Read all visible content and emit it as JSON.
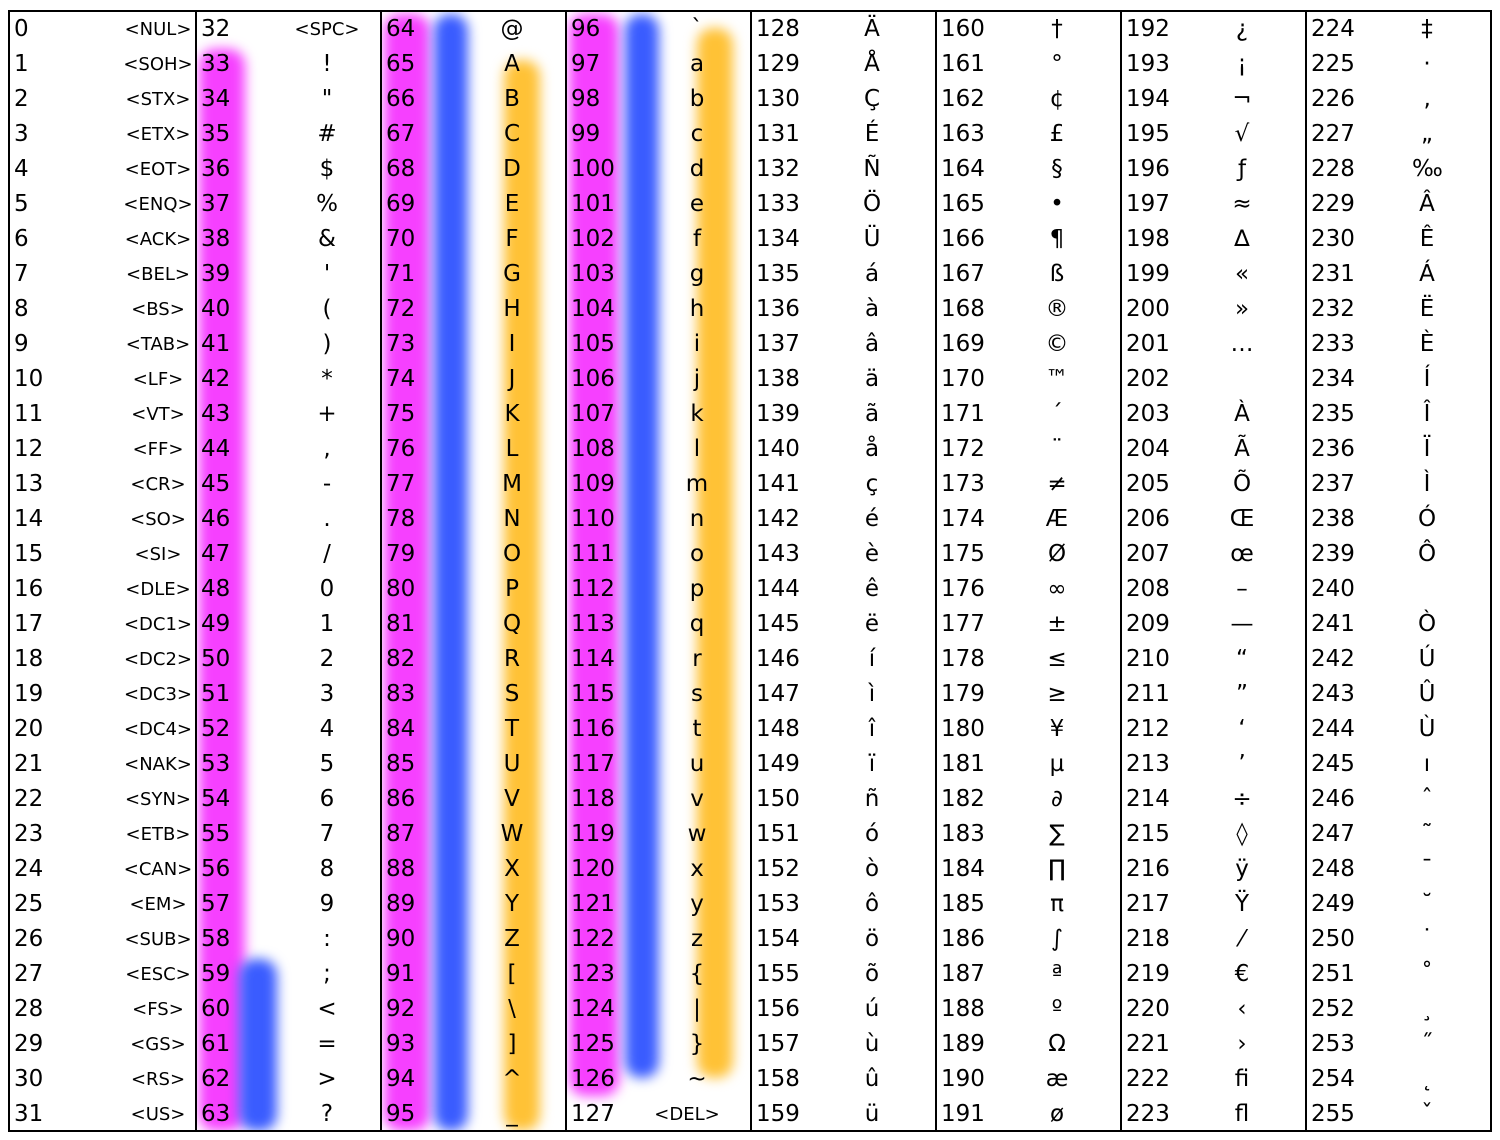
{
  "title": "",
  "colors": {
    "magenta": "#f640ff",
    "blue": "#3a5cff",
    "orange": "#ffc236"
  },
  "columns": [
    {
      "rows": [
        [
          "0",
          "<NUL>"
        ],
        [
          "1",
          "<SOH>"
        ],
        [
          "2",
          "<STX>"
        ],
        [
          "3",
          "<ETX>"
        ],
        [
          "4",
          "<EOT>"
        ],
        [
          "5",
          "<ENQ>"
        ],
        [
          "6",
          "<ACK>"
        ],
        [
          "7",
          "<BEL>"
        ],
        [
          "8",
          "<BS>"
        ],
        [
          "9",
          "<TAB>"
        ],
        [
          "10",
          "<LF>"
        ],
        [
          "11",
          "<VT>"
        ],
        [
          "12",
          "<FF>"
        ],
        [
          "13",
          "<CR>"
        ],
        [
          "14",
          "<SO>"
        ],
        [
          "15",
          "<SI>"
        ],
        [
          "16",
          "<DLE>"
        ],
        [
          "17",
          "<DC1>"
        ],
        [
          "18",
          "<DC2>"
        ],
        [
          "19",
          "<DC3>"
        ],
        [
          "20",
          "<DC4>"
        ],
        [
          "21",
          "<NAK>"
        ],
        [
          "22",
          "<SYN>"
        ],
        [
          "23",
          "<ETB>"
        ],
        [
          "24",
          "<CAN>"
        ],
        [
          "25",
          "<EM>"
        ],
        [
          "26",
          "<SUB>"
        ],
        [
          "27",
          "<ESC>"
        ],
        [
          "28",
          "<FS>"
        ],
        [
          "29",
          "<GS>"
        ],
        [
          "30",
          "<RS>"
        ],
        [
          "31",
          "<US>"
        ]
      ]
    },
    {
      "rows": [
        [
          "32",
          "<SPC>"
        ],
        [
          "33",
          "!"
        ],
        [
          "34",
          "\""
        ],
        [
          "35",
          "#"
        ],
        [
          "36",
          "$"
        ],
        [
          "37",
          "%"
        ],
        [
          "38",
          "&"
        ],
        [
          "39",
          "'"
        ],
        [
          "40",
          "("
        ],
        [
          "41",
          ")"
        ],
        [
          "42",
          "*"
        ],
        [
          "43",
          "+"
        ],
        [
          "44",
          ","
        ],
        [
          "45",
          "-"
        ],
        [
          "46",
          "."
        ],
        [
          "47",
          "/"
        ],
        [
          "48",
          "0"
        ],
        [
          "49",
          "1"
        ],
        [
          "50",
          "2"
        ],
        [
          "51",
          "3"
        ],
        [
          "52",
          "4"
        ],
        [
          "53",
          "5"
        ],
        [
          "54",
          "6"
        ],
        [
          "55",
          "7"
        ],
        [
          "56",
          "8"
        ],
        [
          "57",
          "9"
        ],
        [
          "58",
          ":"
        ],
        [
          "59",
          ";"
        ],
        [
          "60",
          "<"
        ],
        [
          "61",
          "="
        ],
        [
          "62",
          ">"
        ],
        [
          "63",
          "?"
        ]
      ]
    },
    {
      "rows": [
        [
          "64",
          "@"
        ],
        [
          "65",
          "A"
        ],
        [
          "66",
          "B"
        ],
        [
          "67",
          "C"
        ],
        [
          "68",
          "D"
        ],
        [
          "69",
          "E"
        ],
        [
          "70",
          "F"
        ],
        [
          "71",
          "G"
        ],
        [
          "72",
          "H"
        ],
        [
          "73",
          "I"
        ],
        [
          "74",
          "J"
        ],
        [
          "75",
          "K"
        ],
        [
          "76",
          "L"
        ],
        [
          "77",
          "M"
        ],
        [
          "78",
          "N"
        ],
        [
          "79",
          "O"
        ],
        [
          "80",
          "P"
        ],
        [
          "81",
          "Q"
        ],
        [
          "82",
          "R"
        ],
        [
          "83",
          "S"
        ],
        [
          "84",
          "T"
        ],
        [
          "85",
          "U"
        ],
        [
          "86",
          "V"
        ],
        [
          "87",
          "W"
        ],
        [
          "88",
          "X"
        ],
        [
          "89",
          "Y"
        ],
        [
          "90",
          "Z"
        ],
        [
          "91",
          "["
        ],
        [
          "92",
          "\\"
        ],
        [
          "93",
          "]"
        ],
        [
          "94",
          "^"
        ],
        [
          "95",
          "_"
        ]
      ]
    },
    {
      "rows": [
        [
          "96",
          "`"
        ],
        [
          "97",
          "a"
        ],
        [
          "98",
          "b"
        ],
        [
          "99",
          "c"
        ],
        [
          "100",
          "d"
        ],
        [
          "101",
          "e"
        ],
        [
          "102",
          "f"
        ],
        [
          "103",
          "g"
        ],
        [
          "104",
          "h"
        ],
        [
          "105",
          "i"
        ],
        [
          "106",
          "j"
        ],
        [
          "107",
          "k"
        ],
        [
          "108",
          "l"
        ],
        [
          "109",
          "m"
        ],
        [
          "110",
          "n"
        ],
        [
          "111",
          "o"
        ],
        [
          "112",
          "p"
        ],
        [
          "113",
          "q"
        ],
        [
          "114",
          "r"
        ],
        [
          "115",
          "s"
        ],
        [
          "116",
          "t"
        ],
        [
          "117",
          "u"
        ],
        [
          "118",
          "v"
        ],
        [
          "119",
          "w"
        ],
        [
          "120",
          "x"
        ],
        [
          "121",
          "y"
        ],
        [
          "122",
          "z"
        ],
        [
          "123",
          "{"
        ],
        [
          "124",
          "|"
        ],
        [
          "125",
          "}"
        ],
        [
          "126",
          "~"
        ],
        [
          "127",
          "<DEL>"
        ]
      ]
    },
    {
      "rows": [
        [
          "128",
          "Ä"
        ],
        [
          "129",
          "Å"
        ],
        [
          "130",
          "Ç"
        ],
        [
          "131",
          "É"
        ],
        [
          "132",
          "Ñ"
        ],
        [
          "133",
          "Ö"
        ],
        [
          "134",
          "Ü"
        ],
        [
          "135",
          "á"
        ],
        [
          "136",
          "à"
        ],
        [
          "137",
          "â"
        ],
        [
          "138",
          "ä"
        ],
        [
          "139",
          "ã"
        ],
        [
          "140",
          "å"
        ],
        [
          "141",
          "ç"
        ],
        [
          "142",
          "é"
        ],
        [
          "143",
          "è"
        ],
        [
          "144",
          "ê"
        ],
        [
          "145",
          "ë"
        ],
        [
          "146",
          "í"
        ],
        [
          "147",
          "ì"
        ],
        [
          "148",
          "î"
        ],
        [
          "149",
          "ï"
        ],
        [
          "150",
          "ñ"
        ],
        [
          "151",
          "ó"
        ],
        [
          "152",
          "ò"
        ],
        [
          "153",
          "ô"
        ],
        [
          "154",
          "ö"
        ],
        [
          "155",
          "õ"
        ],
        [
          "156",
          "ú"
        ],
        [
          "157",
          "ù"
        ],
        [
          "158",
          "û"
        ],
        [
          "159",
          "ü"
        ]
      ]
    },
    {
      "rows": [
        [
          "160",
          "†"
        ],
        [
          "161",
          "°"
        ],
        [
          "162",
          "¢"
        ],
        [
          "163",
          "£"
        ],
        [
          "164",
          "§"
        ],
        [
          "165",
          "•"
        ],
        [
          "166",
          "¶"
        ],
        [
          "167",
          "ß"
        ],
        [
          "168",
          "®"
        ],
        [
          "169",
          "©"
        ],
        [
          "170",
          "™"
        ],
        [
          "171",
          "´"
        ],
        [
          "172",
          "¨"
        ],
        [
          "173",
          "≠"
        ],
        [
          "174",
          "Æ"
        ],
        [
          "175",
          "Ø"
        ],
        [
          "176",
          "∞"
        ],
        [
          "177",
          "±"
        ],
        [
          "178",
          "≤"
        ],
        [
          "179",
          "≥"
        ],
        [
          "180",
          "¥"
        ],
        [
          "181",
          "µ"
        ],
        [
          "182",
          "∂"
        ],
        [
          "183",
          "∑"
        ],
        [
          "184",
          "∏"
        ],
        [
          "185",
          "π"
        ],
        [
          "186",
          "∫"
        ],
        [
          "187",
          "ª"
        ],
        [
          "188",
          "º"
        ],
        [
          "189",
          "Ω"
        ],
        [
          "190",
          "æ"
        ],
        [
          "191",
          "ø"
        ]
      ]
    },
    {
      "rows": [
        [
          "192",
          "¿"
        ],
        [
          "193",
          "¡"
        ],
        [
          "194",
          "¬"
        ],
        [
          "195",
          "√"
        ],
        [
          "196",
          "ƒ"
        ],
        [
          "197",
          "≈"
        ],
        [
          "198",
          "∆"
        ],
        [
          "199",
          "«"
        ],
        [
          "200",
          "»"
        ],
        [
          "201",
          "…"
        ],
        [
          "202",
          ""
        ],
        [
          "203",
          "À"
        ],
        [
          "204",
          "Ã"
        ],
        [
          "205",
          "Õ"
        ],
        [
          "206",
          "Œ"
        ],
        [
          "207",
          "œ"
        ],
        [
          "208",
          "–"
        ],
        [
          "209",
          "—"
        ],
        [
          "210",
          "“"
        ],
        [
          "211",
          "”"
        ],
        [
          "212",
          "‘"
        ],
        [
          "213",
          "’"
        ],
        [
          "214",
          "÷"
        ],
        [
          "215",
          "◊"
        ],
        [
          "216",
          "ÿ"
        ],
        [
          "217",
          "Ÿ"
        ],
        [
          "218",
          "⁄"
        ],
        [
          "219",
          "€"
        ],
        [
          "220",
          "‹"
        ],
        [
          "221",
          "›"
        ],
        [
          "222",
          "ﬁ"
        ],
        [
          "223",
          "ﬂ"
        ]
      ]
    },
    {
      "rows": [
        [
          "224",
          "‡"
        ],
        [
          "225",
          "·"
        ],
        [
          "226",
          "‚"
        ],
        [
          "227",
          "„"
        ],
        [
          "228",
          "‰"
        ],
        [
          "229",
          "Â"
        ],
        [
          "230",
          "Ê"
        ],
        [
          "231",
          "Á"
        ],
        [
          "232",
          "Ë"
        ],
        [
          "233",
          "È"
        ],
        [
          "234",
          "Í"
        ],
        [
          "235",
          "Î"
        ],
        [
          "236",
          "Ï"
        ],
        [
          "237",
          "Ì"
        ],
        [
          "238",
          "Ó"
        ],
        [
          "239",
          "Ô"
        ],
        [
          "240",
          ""
        ],
        [
          "241",
          "Ò"
        ],
        [
          "242",
          "Ú"
        ],
        [
          "243",
          "Û"
        ],
        [
          "244",
          "Ù"
        ],
        [
          "245",
          "ı"
        ],
        [
          "246",
          "ˆ"
        ],
        [
          "247",
          "˜"
        ],
        [
          "248",
          "¯"
        ],
        [
          "249",
          "˘"
        ],
        [
          "250",
          "˙"
        ],
        [
          "251",
          "˚"
        ],
        [
          "252",
          "¸"
        ],
        [
          "253",
          "˝"
        ],
        [
          "254",
          "˛"
        ],
        [
          "255",
          "ˇ"
        ]
      ]
    }
  ]
}
